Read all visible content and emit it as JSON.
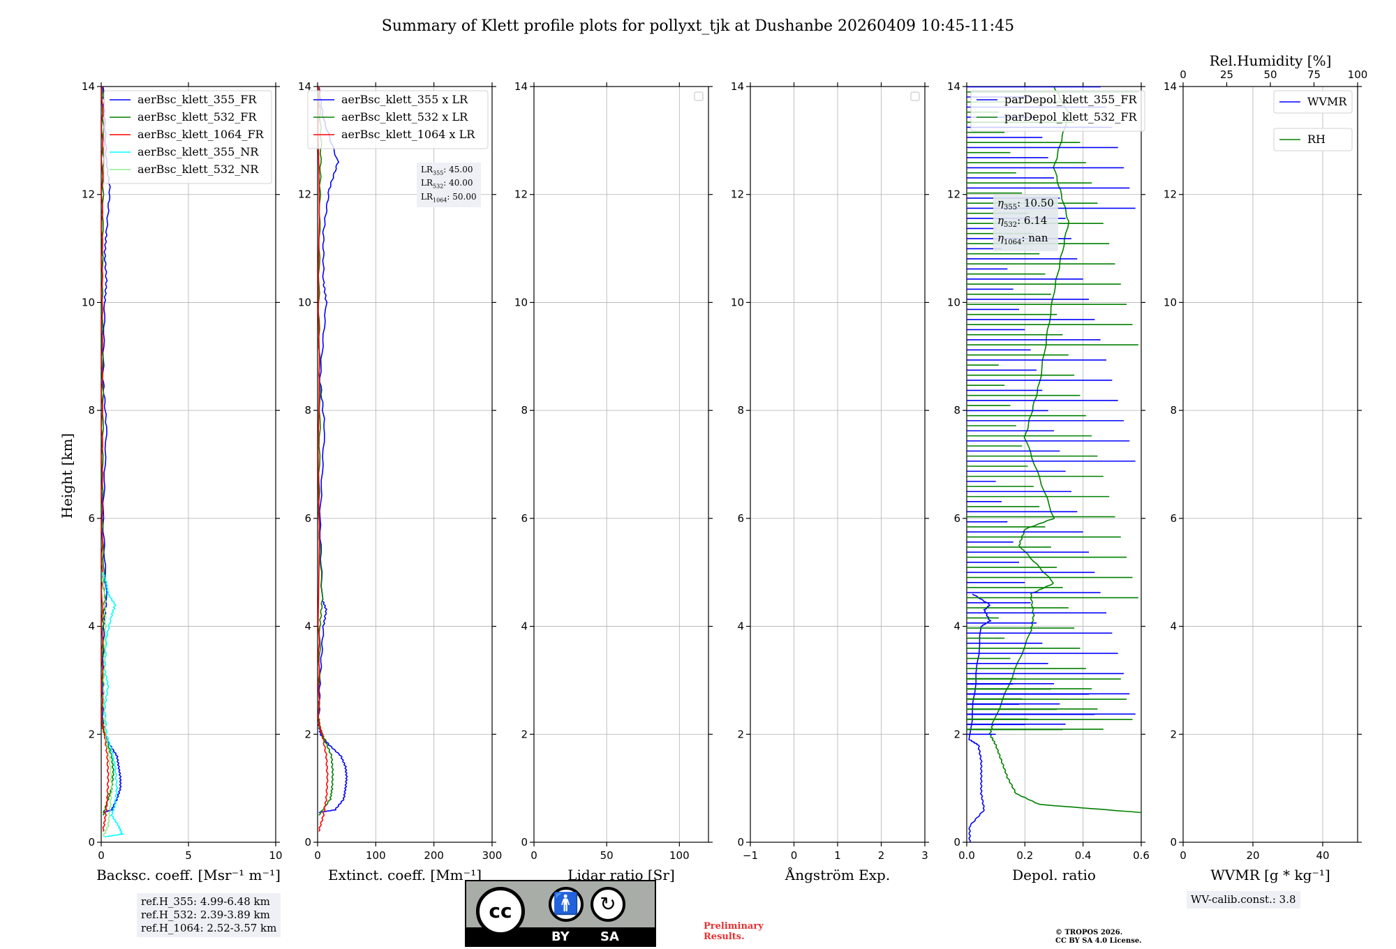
{
  "figure": {
    "title": "Summary of Klett profile plots for pollyxt_tjk at Dushanbe 20260409 10:45-11:45",
    "ylabel": "Height [km]"
  },
  "chart_data": [
    {
      "type": "line",
      "id": "bsc",
      "xlabel": "Backsc. coeff. [Msr⁻¹ m⁻¹]",
      "xlim": [
        0,
        10
      ],
      "ylim": [
        0,
        14
      ],
      "xticks": [
        "0",
        "5",
        "10"
      ],
      "yticks": [
        "0",
        "2",
        "4",
        "6",
        "8",
        "10",
        "12",
        "14"
      ],
      "legend_position": "upper-right",
      "series": [
        {
          "name": "aerBsc_klett_355_FR",
          "color": "#0000ff",
          "y": [
            0.55,
            0.6,
            0.8,
            1.0,
            1.2,
            1.4,
            1.6,
            1.8,
            2.0,
            2.2,
            3,
            4,
            4.5,
            6,
            7.7,
            8.6,
            10,
            10.4,
            10.9,
            11.3,
            12.1,
            12.6,
            13.4,
            14
          ],
          "x": [
            0.1,
            0.6,
            0.9,
            1.1,
            1.1,
            1.0,
            0.9,
            0.5,
            0.2,
            0.1,
            0.1,
            0.15,
            0.3,
            0.1,
            0.3,
            0.1,
            0.2,
            0.3,
            0.2,
            0.3,
            0.5,
            0.3,
            0.2,
            0.1
          ]
        },
        {
          "name": "aerBsc_klett_532_FR",
          "color": "#008000",
          "y": [
            0.5,
            0.8,
            1.0,
            1.3,
            1.6,
            1.9,
            2.1,
            2.3,
            4,
            4.5,
            6,
            8,
            10,
            12,
            13,
            14
          ],
          "x": [
            0.1,
            0.4,
            0.6,
            0.7,
            0.6,
            0.3,
            0.1,
            0.05,
            0.1,
            0.2,
            0.05,
            0.1,
            0.05,
            0.1,
            0.15,
            0.05
          ]
        },
        {
          "name": "aerBsc_klett_1064_FR",
          "color": "#ff0000",
          "y": [
            0.2,
            0.5,
            0.8,
            1.2,
            1.6,
            2.0,
            2.2,
            4,
            6,
            8,
            10,
            12,
            14
          ],
          "x": [
            0.1,
            0.25,
            0.35,
            0.4,
            0.35,
            0.2,
            0.05,
            0.05,
            0.05,
            0.05,
            0.05,
            0.05,
            0.05
          ]
        },
        {
          "name": "aerBsc_klett_355_NR",
          "color": "#00ffff",
          "y": [
            0.1,
            0.15,
            0.3,
            0.5,
            0.7,
            1.0,
            1.4,
            1.7,
            2.0,
            2.5,
            2.9,
            3.2,
            3.8,
            4.2,
            4.4,
            4.6,
            4.8,
            5.0
          ],
          "x": [
            0.2,
            1.2,
            1.0,
            0.6,
            0.8,
            0.9,
            0.8,
            0.6,
            0.3,
            0.2,
            0.4,
            0.2,
            0.3,
            0.6,
            0.8,
            0.4,
            0.3,
            0.1
          ]
        },
        {
          "name": "aerBsc_klett_532_NR",
          "color": "#90ee90",
          "y": [
            0.1,
            0.3,
            0.6,
            1.0,
            1.5,
            2.0,
            2.5,
            3.0,
            3.5,
            4.0,
            4.5,
            5.0
          ],
          "x": [
            0.1,
            0.4,
            0.5,
            0.6,
            0.5,
            0.25,
            0.15,
            0.15,
            0.2,
            0.25,
            0.2,
            0.05
          ]
        }
      ],
      "info": [
        "ref.H_355: 4.99-6.48 km",
        "ref.H_532: 2.39-3.89 km",
        "ref.H_1064: 2.52-3.57 km"
      ]
    },
    {
      "type": "line",
      "id": "ext",
      "xlabel": "Extinct. coeff. [Mm⁻¹]",
      "xlim": [
        0,
        300
      ],
      "ylim": [
        0,
        14
      ],
      "xticks": [
        "0",
        "100",
        "200",
        "300"
      ],
      "yticks": [
        "0",
        "2",
        "4",
        "6",
        "8",
        "10",
        "12",
        "14"
      ],
      "legend_position": "upper-right",
      "series": [
        {
          "name": "aerBsc_klett_355 x LR",
          "color": "#0000ff",
          "y": [
            0.55,
            0.6,
            0.8,
            1.0,
            1.2,
            1.4,
            1.6,
            1.8,
            2.0,
            2.2,
            3,
            4,
            4.3,
            4.5,
            6,
            7.7,
            8.6,
            10,
            10.4,
            11.3,
            12.1,
            12.6,
            13.4,
            14
          ],
          "x": [
            2,
            30,
            45,
            48,
            50,
            48,
            40,
            20,
            5,
            2,
            4,
            10,
            15,
            8,
            4,
            12,
            4,
            15,
            10,
            10,
            20,
            35,
            10,
            2
          ]
        },
        {
          "name": "aerBsc_klett_532 x LR",
          "color": "#008000",
          "y": [
            0.5,
            0.8,
            1.0,
            1.3,
            1.6,
            1.9,
            2.1,
            2.3,
            4,
            4.5,
            6,
            8,
            10,
            12,
            13,
            14
          ],
          "x": [
            2,
            22,
            25,
            26,
            24,
            12,
            4,
            2,
            4,
            8,
            2,
            4,
            2,
            4,
            6,
            2
          ]
        },
        {
          "name": "aerBsc_klett_1064 x LR",
          "color": "#ff0000",
          "y": [
            0.2,
            0.5,
            0.8,
            1.2,
            1.6,
            2.0,
            2.2,
            4,
            14
          ],
          "x": [
            2,
            10,
            15,
            17,
            15,
            8,
            2,
            2,
            2
          ]
        }
      ],
      "info": [
        "LR355: 45.00",
        "LR532: 40.00",
        "LR1064: 50.00"
      ]
    },
    {
      "type": "line",
      "id": "lr",
      "xlabel": "Lidar ratio [Sr]",
      "xlim": [
        0,
        120
      ],
      "ylim": [
        0,
        14
      ],
      "xticks": [
        "0",
        "50",
        "100"
      ],
      "yticks": [
        "0",
        "2",
        "4",
        "6",
        "8",
        "10",
        "12",
        "14"
      ],
      "series": []
    },
    {
      "type": "line",
      "id": "ang",
      "xlabel": "Ångström Exp.",
      "xlim": [
        -1,
        3
      ],
      "ylim": [
        0,
        14
      ],
      "xticks": [
        "−1",
        "0",
        "1",
        "2",
        "3"
      ],
      "yticks": [
        "0",
        "2",
        "4",
        "6",
        "8",
        "10",
        "12",
        "14"
      ],
      "series": []
    },
    {
      "type": "line",
      "id": "depol",
      "xlabel": "Depol. ratio",
      "xlim": [
        0,
        0.6
      ],
      "ylim": [
        0,
        14
      ],
      "xticks": [
        "0.0",
        "0.2",
        "0.4",
        "0.6"
      ],
      "yticks": [
        "0",
        "2",
        "4",
        "6",
        "8",
        "10",
        "12",
        "14"
      ],
      "legend_position": "upper-left",
      "series": [
        {
          "name": "parDepol_klett_355_FR",
          "color": "#0000ff",
          "y": [
            0.0,
            0.3,
            0.6,
            0.9,
            1.2,
            1.5,
            1.8,
            1.9,
            4.0,
            4.1,
            4.3,
            4.4,
            4.6
          ],
          "x": [
            0.01,
            0.01,
            0.06,
            0.05,
            0.05,
            0.05,
            0.04,
            0.01,
            0.05,
            0.08,
            0.06,
            0.08,
            0.02
          ]
        },
        {
          "name": "parDepol_klett_532_FR",
          "color": "#008000",
          "y": [
            0.55,
            0.7,
            0.9,
            1.2,
            1.5,
            1.8,
            2.0,
            2.2,
            3.9,
            4.2,
            4.6,
            4.8,
            5.5,
            5.8,
            6.0,
            7.5,
            8.5,
            10.2,
            11.5,
            12.5,
            13.5,
            14
          ],
          "x": [
            0.6,
            0.25,
            0.17,
            0.14,
            0.12,
            0.1,
            0.08,
            0.09,
            0.22,
            0.23,
            0.22,
            0.3,
            0.18,
            0.2,
            0.3,
            0.2,
            0.25,
            0.3,
            0.35,
            0.3,
            0.35,
            0.3
          ]
        }
      ],
      "info": [
        "η355: 10.50",
        "η532: 6.14",
        "η1064: nan"
      ]
    },
    {
      "type": "line",
      "id": "wvmr",
      "xlabel": "WVMR [g * kg⁻¹]",
      "top_xlabel": "Rel.Humidity [%]",
      "xlim": [
        0,
        50
      ],
      "top_xlim": [
        0,
        100
      ],
      "ylim": [
        0,
        14
      ],
      "xticks": [
        "0",
        "20",
        "40"
      ],
      "top_xticks": [
        "0",
        "25",
        "50",
        "75",
        "100"
      ],
      "yticks": [
        "0",
        "2",
        "4",
        "6",
        "8",
        "10",
        "12",
        "14"
      ],
      "series": [
        {
          "name": "WVMR",
          "color": "#0000ff",
          "y": [],
          "x": []
        },
        {
          "name": "RH",
          "color": "#008000",
          "y": [],
          "x": []
        }
      ],
      "info": [
        "WV-calib.const.: 3.8"
      ]
    }
  ],
  "footer": {
    "cc_by": "BY",
    "cc_sa": "SA",
    "preliminary": "Preliminary\nResults.",
    "preliminary_line1": "Preliminary",
    "preliminary_line2": "Results.",
    "copyright_line1": "© TROPOS 2026.",
    "copyright_line2": "CC BY SA 4.0 License.",
    "preliminary_color": "#e83030"
  }
}
